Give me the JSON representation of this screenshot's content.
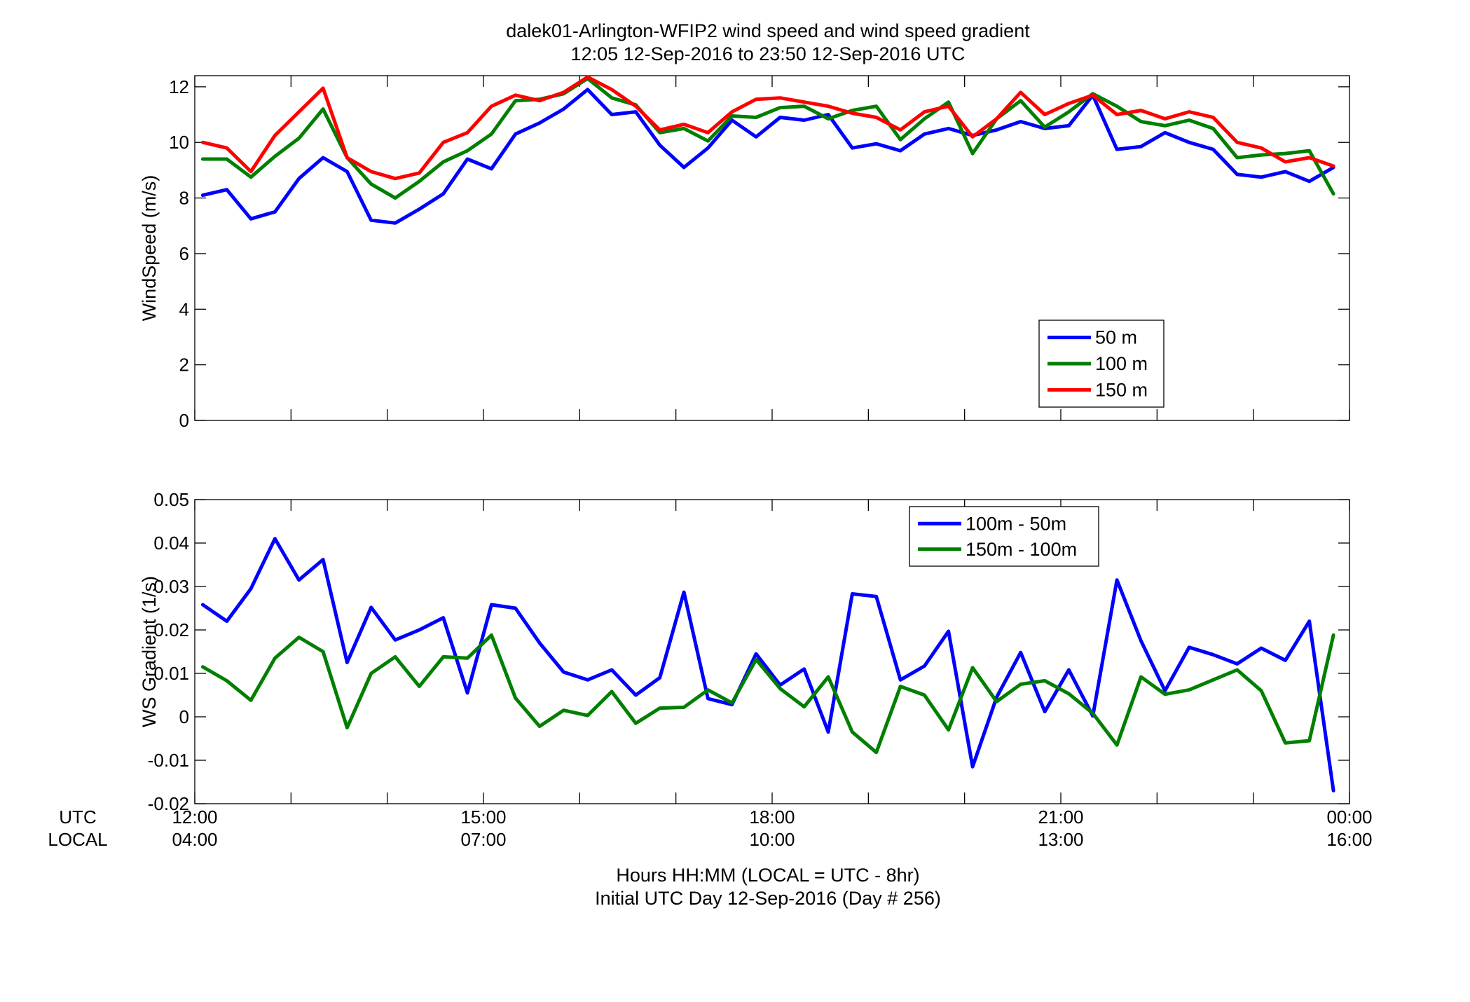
{
  "figure": {
    "title_line1": "dalek01-Arlington-WFIP2  wind speed and wind speed gradient",
    "title_line2": "12:05 12-Sep-2016 to 23:50 12-Sep-2016  UTC",
    "xlabel_line1": "Hours HH:MM  (LOCAL = UTC - 8hr)",
    "xlabel_line2": "Initial UTC Day 12-Sep-2016 (Day # 256)",
    "row_label_utc": "UTC",
    "row_label_local": "LOCAL",
    "x_ticks_utc": [
      "12:00",
      "15:00",
      "18:00",
      "21:00",
      "00:00"
    ],
    "x_ticks_local": [
      "04:00",
      "07:00",
      "10:00",
      "13:00",
      "16:00"
    ]
  },
  "chart_data": [
    {
      "type": "line",
      "title": "dalek01-Arlington-WFIP2  wind speed and wind speed gradient",
      "xlabel": "Hours HH:MM  (LOCAL = UTC - 8hr)",
      "ylabel": "WindSpeed (m/s)",
      "xlim": [
        12,
        24
      ],
      "ylim": [
        0,
        12.4
      ],
      "y_ticks": [
        0,
        2,
        4,
        6,
        8,
        10,
        12
      ],
      "y_tick_labels": [
        "0",
        "2",
        "4",
        "6",
        "8",
        "10",
        "12"
      ],
      "legend_position": "lower-right",
      "grid": false,
      "x": [
        12.083,
        12.333,
        12.583,
        12.833,
        13.083,
        13.333,
        13.583,
        13.833,
        14.083,
        14.333,
        14.583,
        14.833,
        15.083,
        15.333,
        15.583,
        15.833,
        16.083,
        16.333,
        16.583,
        16.833,
        17.083,
        17.333,
        17.583,
        17.833,
        18.083,
        18.333,
        18.583,
        18.833,
        19.083,
        19.333,
        19.583,
        19.833,
        20.083,
        20.333,
        20.583,
        20.833,
        21.083,
        21.333,
        21.583,
        21.833,
        22.083,
        22.333,
        22.583,
        22.833,
        23.083,
        23.333,
        23.583,
        23.833
      ],
      "series": [
        {
          "name": "50 m",
          "color": "#0000ff",
          "values": [
            8.1,
            8.3,
            7.25,
            7.5,
            8.7,
            9.45,
            8.95,
            7.2,
            7.1,
            7.6,
            8.15,
            9.4,
            9.05,
            10.3,
            10.7,
            11.2,
            11.9,
            11.0,
            11.1,
            9.9,
            9.1,
            9.8,
            10.8,
            10.2,
            10.9,
            10.8,
            11.0,
            9.8,
            9.95,
            9.7,
            10.3,
            10.5,
            10.25,
            10.45,
            10.75,
            10.5,
            10.6,
            11.7,
            9.75,
            9.85,
            10.35,
            10.0,
            9.75,
            8.85,
            8.75,
            8.95,
            8.6,
            9.1
          ]
        },
        {
          "name": "100 m",
          "color": "#007f00",
          "values": [
            9.4,
            9.4,
            8.75,
            9.5,
            10.15,
            11.2,
            9.45,
            8.5,
            8.0,
            8.6,
            9.3,
            9.7,
            10.3,
            11.5,
            11.55,
            11.75,
            12.3,
            11.6,
            11.35,
            10.35,
            10.5,
            10.05,
            10.95,
            10.9,
            11.25,
            11.3,
            10.85,
            11.15,
            11.3,
            10.1,
            10.85,
            11.45,
            9.6,
            10.85,
            11.5,
            10.55,
            11.1,
            11.75,
            11.3,
            10.75,
            10.6,
            10.8,
            10.5,
            9.45,
            9.55,
            9.6,
            9.7,
            8.15
          ]
        },
        {
          "name": "150 m",
          "color": "#ff0000",
          "values": [
            10.0,
            9.8,
            8.95,
            10.25,
            11.1,
            11.95,
            9.45,
            8.95,
            8.7,
            8.9,
            10.0,
            10.35,
            11.3,
            11.7,
            11.5,
            11.8,
            12.35,
            11.9,
            11.3,
            10.45,
            10.65,
            10.35,
            11.1,
            11.55,
            11.6,
            11.45,
            11.3,
            11.05,
            10.9,
            10.45,
            11.1,
            11.3,
            10.2,
            10.85,
            11.8,
            11.0,
            11.4,
            11.7,
            11.0,
            11.15,
            10.85,
            11.1,
            10.9,
            10.0,
            9.8,
            9.3,
            9.45,
            9.15
          ]
        }
      ]
    },
    {
      "type": "line",
      "xlabel": "Hours HH:MM  (LOCAL = UTC - 8hr)",
      "ylabel": "WS Gradient (1/s)",
      "xlim": [
        12,
        24
      ],
      "ylim": [
        -0.02,
        0.05
      ],
      "y_ticks": [
        -0.02,
        -0.01,
        0,
        0.01,
        0.02,
        0.03,
        0.04,
        0.05
      ],
      "y_tick_labels": [
        "-0.02",
        "-0.01",
        "0",
        "0.01",
        "0.02",
        "0.03",
        "0.04",
        "0.05"
      ],
      "legend_position": "top-right",
      "grid": false,
      "x": [
        12.083,
        12.333,
        12.583,
        12.833,
        13.083,
        13.333,
        13.583,
        13.833,
        14.083,
        14.333,
        14.583,
        14.833,
        15.083,
        15.333,
        15.583,
        15.833,
        16.083,
        16.333,
        16.583,
        16.833,
        17.083,
        17.333,
        17.583,
        17.833,
        18.083,
        18.333,
        18.583,
        18.833,
        19.083,
        19.333,
        19.583,
        19.833,
        20.083,
        20.333,
        20.583,
        20.833,
        21.083,
        21.333,
        21.583,
        21.833,
        22.083,
        22.333,
        22.583,
        22.833,
        23.083,
        23.333,
        23.583,
        23.833
      ],
      "series": [
        {
          "name": "100m - 50m",
          "color": "#0000ff",
          "values": [
            0.0258,
            0.022,
            0.0295,
            0.041,
            0.0315,
            0.0362,
            0.0125,
            0.0252,
            0.0177,
            0.02,
            0.0228,
            0.0055,
            0.0258,
            0.025,
            0.017,
            0.0103,
            0.0085,
            0.0108,
            0.005,
            0.009,
            0.0287,
            0.0042,
            0.0028,
            0.0145,
            0.0073,
            0.011,
            -0.0035,
            0.0283,
            0.0277,
            0.0085,
            0.0117,
            0.0197,
            -0.0115,
            0.0045,
            0.0148,
            0.0012,
            0.0108,
            0.0002,
            0.0315,
            0.0175,
            0.006,
            0.016,
            0.0143,
            0.0122,
            0.0158,
            0.013,
            0.022,
            -0.017
          ]
        },
        {
          "name": "150m - 100m",
          "color": "#007f00",
          "values": [
            0.0115,
            0.0083,
            0.0038,
            0.0135,
            0.0183,
            0.015,
            -0.0025,
            0.01,
            0.0138,
            0.007,
            0.0138,
            0.0135,
            0.0188,
            0.0043,
            -0.0022,
            0.0015,
            0.0003,
            0.0058,
            -0.0015,
            0.002,
            0.0022,
            0.0062,
            0.0032,
            0.0132,
            0.0065,
            0.0023,
            0.0092,
            -0.0035,
            -0.0082,
            0.007,
            0.005,
            -0.003,
            0.0113,
            0.0035,
            0.0075,
            0.0083,
            0.0053,
            0.0008,
            -0.0065,
            0.0092,
            0.0052,
            0.0062,
            0.0085,
            0.0108,
            0.006,
            -0.006,
            -0.0055,
            0.0188
          ]
        }
      ]
    }
  ]
}
